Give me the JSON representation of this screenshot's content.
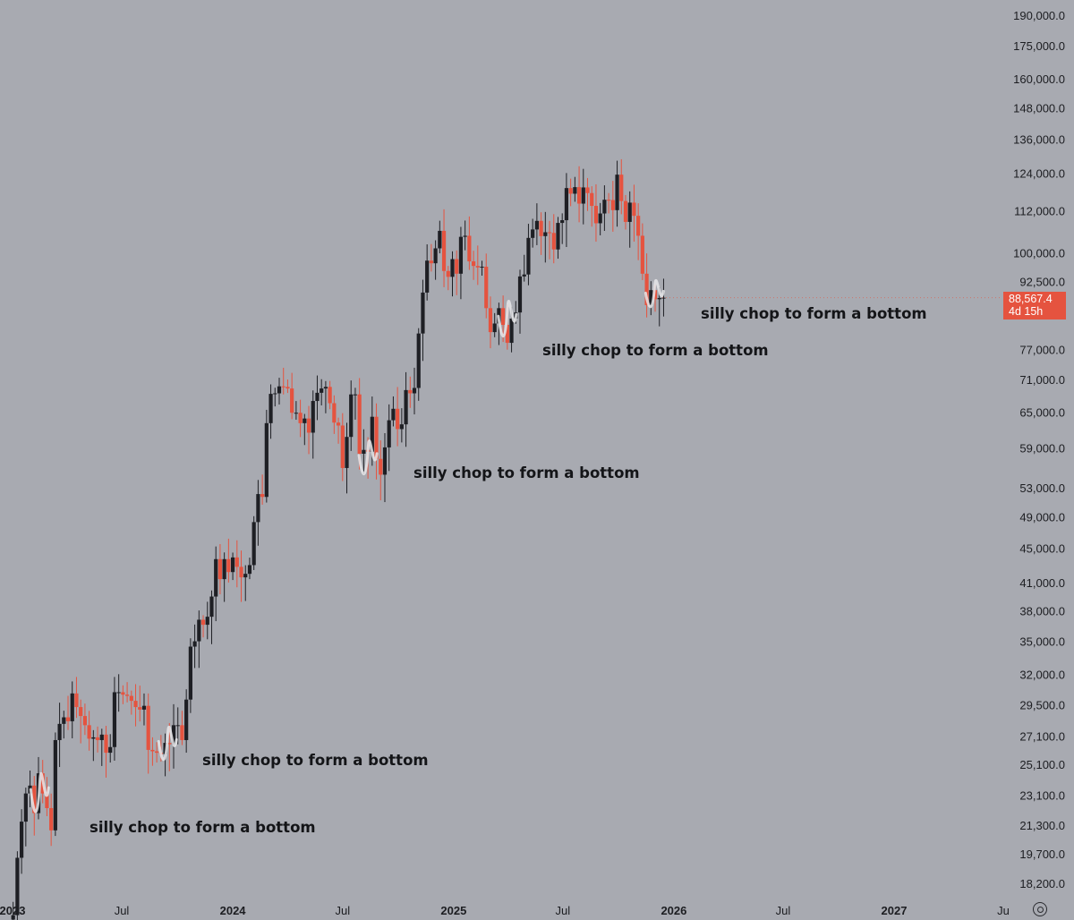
{
  "chart_data": {
    "type": "candlestick",
    "scale": "log",
    "timeframe": "weekly",
    "colors": {
      "up": "#1e1f24",
      "down": "#e5533f",
      "background": "#a8aab1",
      "highlight": "#e8e8ea"
    },
    "y_ticks": [
      "190,000.0",
      "175,000.0",
      "160,000.0",
      "148,000.0",
      "136,000.0",
      "124,000.0",
      "112,000.0",
      "100,000.0",
      "92,500.0",
      "77,000.0",
      "71,000.0",
      "65,000.0",
      "59,000.0",
      "53,000.0",
      "49,000.0",
      "45,000.0",
      "41,000.0",
      "38,000.0",
      "35,000.0",
      "32,000.0",
      "29,500.0",
      "27,100.0",
      "25,100.0",
      "23,100.0",
      "21,300.0",
      "19,700.0",
      "18,200.0"
    ],
    "x_ticks": [
      "2023",
      "Jul",
      "2024",
      "Jul",
      "2025",
      "Jul",
      "2026",
      "Jul",
      "2027",
      "Ju"
    ],
    "x_tick_dates": [
      "2023-01",
      "2023-07",
      "2024-01",
      "2024-07",
      "2025-01",
      "2025-07",
      "2026-01",
      "2026-07",
      "2027-01",
      "2027-07"
    ],
    "last_price": {
      "value": "88,567.4",
      "countdown": "4d 15h"
    },
    "annotations": [
      {
        "text": "silly chop to form a bottom",
        "date": "2023-03"
      },
      {
        "text": "silly chop to form a bottom",
        "date": "2023-09"
      },
      {
        "text": "silly chop to form a bottom",
        "date": "2024-08"
      },
      {
        "text": "silly chop to form a bottom",
        "date": "2025-04"
      },
      {
        "text": "silly chop to form a bottom",
        "date": "2025-12"
      }
    ],
    "close_path": [
      [
        "2023-01-02",
        16700
      ],
      [
        "2023-01-09",
        19500
      ],
      [
        "2023-01-16",
        21500
      ],
      [
        "2023-01-23",
        23200
      ],
      [
        "2023-01-30",
        23700
      ],
      [
        "2023-02-06",
        22000
      ],
      [
        "2023-02-13",
        24500
      ],
      [
        "2023-02-20",
        23200
      ],
      [
        "2023-02-27",
        22300
      ],
      [
        "2023-03-06",
        21000
      ],
      [
        "2023-03-13",
        26800
      ],
      [
        "2023-03-20",
        28000
      ],
      [
        "2023-03-27",
        28500
      ],
      [
        "2023-04-03",
        28200
      ],
      [
        "2023-04-10",
        30400
      ],
      [
        "2023-04-17",
        29300
      ],
      [
        "2023-04-24",
        28600
      ],
      [
        "2023-05-01",
        27900
      ],
      [
        "2023-05-08",
        26900
      ],
      [
        "2023-05-15",
        27000
      ],
      [
        "2023-05-22",
        26800
      ],
      [
        "2023-05-29",
        27200
      ],
      [
        "2023-06-05",
        25900
      ],
      [
        "2023-06-12",
        26300
      ],
      [
        "2023-06-19",
        30500
      ],
      [
        "2023-06-26",
        30500
      ],
      [
        "2023-07-03",
        30300
      ],
      [
        "2023-07-10",
        30200
      ],
      [
        "2023-07-17",
        29800
      ],
      [
        "2023-07-24",
        29300
      ],
      [
        "2023-07-31",
        29100
      ],
      [
        "2023-08-07",
        29400
      ],
      [
        "2023-08-14",
        26100
      ],
      [
        "2023-08-21",
        26000
      ],
      [
        "2023-08-28",
        25900
      ],
      [
        "2023-09-04",
        25800
      ],
      [
        "2023-09-11",
        26600
      ],
      [
        "2023-09-18",
        26500
      ],
      [
        "2023-09-25",
        27900
      ],
      [
        "2023-10-02",
        27900
      ],
      [
        "2023-10-09",
        26800
      ],
      [
        "2023-10-16",
        29900
      ],
      [
        "2023-10-23",
        34500
      ],
      [
        "2023-10-30",
        35000
      ],
      [
        "2023-11-06",
        37100
      ],
      [
        "2023-11-13",
        36600
      ],
      [
        "2023-11-20",
        37400
      ],
      [
        "2023-11-27",
        39500
      ],
      [
        "2023-12-04",
        43700
      ],
      [
        "2023-12-11",
        41400
      ],
      [
        "2023-12-18",
        43700
      ],
      [
        "2023-12-25",
        42200
      ],
      [
        "2024-01-01",
        43900
      ],
      [
        "2024-01-08",
        42800
      ],
      [
        "2024-01-15",
        41600
      ],
      [
        "2024-01-22",
        42000
      ],
      [
        "2024-01-29",
        43000
      ],
      [
        "2024-02-05",
        48300
      ],
      [
        "2024-02-12",
        52100
      ],
      [
        "2024-02-19",
        51700
      ],
      [
        "2024-02-26",
        63100
      ],
      [
        "2024-03-04",
        68300
      ],
      [
        "2024-03-11",
        68400
      ],
      [
        "2024-03-18",
        69700
      ],
      [
        "2024-03-25",
        69600
      ],
      [
        "2024-04-01",
        69300
      ],
      [
        "2024-04-08",
        64900
      ],
      [
        "2024-04-15",
        64900
      ],
      [
        "2024-04-22",
        63100
      ],
      [
        "2024-04-29",
        63900
      ],
      [
        "2024-05-06",
        61500
      ],
      [
        "2024-05-13",
        67000
      ],
      [
        "2024-05-20",
        68500
      ],
      [
        "2024-05-27",
        69300
      ],
      [
        "2024-06-03",
        69600
      ],
      [
        "2024-06-10",
        66600
      ],
      [
        "2024-06-17",
        63200
      ],
      [
        "2024-06-24",
        62700
      ],
      [
        "2024-07-01",
        55900
      ],
      [
        "2024-07-08",
        60800
      ],
      [
        "2024-07-15",
        68200
      ],
      [
        "2024-07-22",
        68200
      ],
      [
        "2024-07-29",
        58100
      ],
      [
        "2024-08-05",
        58700
      ],
      [
        "2024-08-12",
        58400
      ],
      [
        "2024-08-19",
        64200
      ],
      [
        "2024-08-26",
        57300
      ],
      [
        "2024-09-02",
        54900
      ],
      [
        "2024-09-09",
        59100
      ],
      [
        "2024-09-16",
        63600
      ],
      [
        "2024-09-23",
        65600
      ],
      [
        "2024-09-30",
        62100
      ],
      [
        "2024-10-07",
        62900
      ],
      [
        "2024-10-14",
        69000
      ],
      [
        "2024-10-21",
        68400
      ],
      [
        "2024-10-28",
        69400
      ],
      [
        "2024-11-04",
        80400
      ],
      [
        "2024-11-11",
        89800
      ],
      [
        "2024-11-18",
        97900
      ],
      [
        "2024-11-25",
        97200
      ],
      [
        "2024-12-02",
        101200
      ],
      [
        "2024-12-09",
        106100
      ],
      [
        "2024-12-16",
        95200
      ],
      [
        "2024-12-23",
        93700
      ],
      [
        "2024-12-30",
        98300
      ],
      [
        "2025-01-06",
        94500
      ],
      [
        "2025-01-13",
        104400
      ],
      [
        "2025-01-20",
        104700
      ],
      [
        "2025-01-27",
        97700
      ],
      [
        "2025-02-03",
        96500
      ],
      [
        "2025-02-10",
        96100
      ],
      [
        "2025-02-17",
        96300
      ],
      [
        "2025-02-24",
        86100
      ],
      [
        "2025-03-03",
        80700
      ],
      [
        "2025-03-10",
        82600
      ],
      [
        "2025-03-17",
        86100
      ],
      [
        "2025-03-24",
        82300
      ],
      [
        "2025-03-31",
        78400
      ],
      [
        "2025-04-07",
        83700
      ],
      [
        "2025-04-14",
        85100
      ],
      [
        "2025-04-21",
        93800
      ],
      [
        "2025-04-28",
        94300
      ],
      [
        "2025-05-05",
        104100
      ],
      [
        "2025-05-12",
        106500
      ],
      [
        "2025-05-19",
        109000
      ],
      [
        "2025-05-26",
        104600
      ],
      [
        "2025-06-02",
        105700
      ],
      [
        "2025-06-09",
        105500
      ],
      [
        "2025-06-16",
        100900
      ],
      [
        "2025-06-23",
        108400
      ],
      [
        "2025-06-30",
        109200
      ],
      [
        "2025-07-07",
        119100
      ],
      [
        "2025-07-14",
        117300
      ],
      [
        "2025-07-21",
        119400
      ],
      [
        "2025-07-28",
        114200
      ],
      [
        "2025-08-04",
        119300
      ],
      [
        "2025-08-11",
        117500
      ],
      [
        "2025-08-18",
        113500
      ],
      [
        "2025-08-25",
        108300
      ],
      [
        "2025-09-01",
        111200
      ],
      [
        "2025-09-08",
        115400
      ],
      [
        "2025-09-15",
        115300
      ],
      [
        "2025-09-22",
        112200
      ],
      [
        "2025-09-29",
        123500
      ],
      [
        "2025-10-06",
        115000
      ],
      [
        "2025-10-13",
        108700
      ],
      [
        "2025-10-20",
        114500
      ],
      [
        "2025-10-27",
        110500
      ],
      [
        "2025-11-03",
        104700
      ],
      [
        "2025-11-10",
        94500
      ],
      [
        "2025-11-17",
        86800
      ],
      [
        "2025-11-24",
        90400
      ],
      [
        "2025-12-01",
        88200
      ],
      [
        "2025-12-08",
        88500
      ],
      [
        "2025-12-15",
        88567
      ]
    ]
  }
}
